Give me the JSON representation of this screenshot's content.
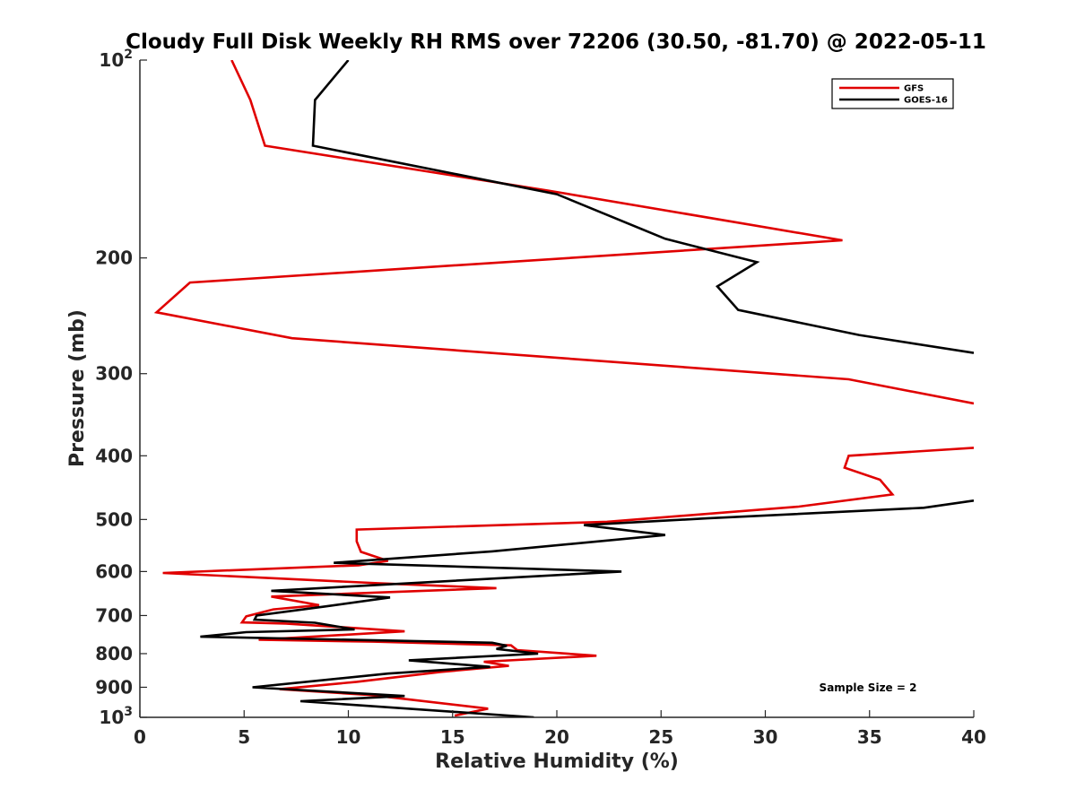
{
  "chart_data": {
    "type": "line",
    "title": "Cloudy Full Disk Weekly RH RMS over 72206 (30.50, -81.70) @ 2022-05-11",
    "xlabel": "Relative Humidity (%)",
    "ylabel": "Pressure (mb)",
    "xlim": [
      0,
      40
    ],
    "ylim": [
      100,
      1000
    ],
    "yscale": "log",
    "y_reversed": true,
    "grid": false,
    "legend_position": "top-right",
    "x_ticks": [
      0,
      5,
      10,
      15,
      20,
      25,
      30,
      35,
      40
    ],
    "y_ticks": [
      {
        "value": 100,
        "base": "10",
        "exp": "2"
      },
      {
        "value": 200,
        "label": "200"
      },
      {
        "value": 300,
        "label": "300"
      },
      {
        "value": 400,
        "label": "400"
      },
      {
        "value": 500,
        "label": "500"
      },
      {
        "value": 600,
        "label": "600"
      },
      {
        "value": 700,
        "label": "700"
      },
      {
        "value": 800,
        "label": "800"
      },
      {
        "value": 900,
        "label": "900"
      },
      {
        "value": 1000,
        "base": "10",
        "exp": "3"
      }
    ],
    "annotation": "Sample Size = 2",
    "series": [
      {
        "name": "GFS",
        "color": "#e00000",
        "points": [
          [
            4.4,
            100
          ],
          [
            5.3,
            115
          ],
          [
            6.0,
            135
          ],
          [
            19.6,
            158
          ],
          [
            33.7,
            188
          ],
          [
            2.4,
            218
          ],
          [
            0.8,
            242
          ],
          [
            7.3,
            265
          ],
          [
            34,
            306
          ],
          [
            40,
            333
          ],
          [
            null,
            null
          ],
          [
            40,
            389
          ],
          [
            34.0,
            400
          ],
          [
            33.8,
            417
          ],
          [
            35.5,
            435
          ],
          [
            36.1,
            458
          ],
          [
            31.6,
            478
          ],
          [
            22.4,
            504
          ],
          [
            10.4,
            518
          ],
          [
            10.4,
            540
          ],
          [
            10.6,
            560
          ],
          [
            11.9,
            578
          ],
          [
            10.5,
            587
          ],
          [
            1.1,
            603
          ],
          [
            11.4,
            625
          ],
          [
            17.1,
            636
          ],
          [
            6.3,
            655
          ],
          [
            8.6,
            675
          ],
          [
            6.4,
            685
          ],
          [
            5.1,
            702
          ],
          [
            4.9,
            717
          ],
          [
            7.0,
            720
          ],
          [
            12.7,
            740
          ],
          [
            5.7,
            762
          ],
          [
            11.2,
            767
          ],
          [
            17.8,
            777
          ],
          [
            18.1,
            790
          ],
          [
            21.9,
            806
          ],
          [
            16.5,
            823
          ],
          [
            17.7,
            835
          ],
          [
            14.4,
            853
          ],
          [
            10.4,
            883
          ],
          [
            6.7,
            906
          ],
          [
            11.1,
            925
          ],
          [
            16.7,
            970
          ],
          [
            15.1,
            994
          ]
        ]
      },
      {
        "name": "GOES-16",
        "color": "#000000",
        "points": [
          [
            10.0,
            100
          ],
          [
            8.4,
            115
          ],
          [
            8.3,
            135
          ],
          [
            20.0,
            160
          ],
          [
            25.2,
            187
          ],
          [
            29.6,
            203
          ],
          [
            27.7,
            221
          ],
          [
            28.7,
            240
          ],
          [
            34.5,
            262
          ],
          [
            40,
            279
          ],
          [
            null,
            null
          ],
          [
            40,
            468
          ],
          [
            37.6,
            480
          ],
          [
            27.2,
            498
          ],
          [
            21.3,
            510
          ],
          [
            25.2,
            528
          ],
          [
            16.9,
            559
          ],
          [
            9.3,
            582
          ],
          [
            23.1,
            600
          ],
          [
            6.3,
            642
          ],
          [
            12.0,
            657
          ],
          [
            8.9,
            678
          ],
          [
            5.6,
            700
          ],
          [
            5.5,
            710
          ],
          [
            8.4,
            718
          ],
          [
            10.3,
            735
          ],
          [
            5.1,
            742
          ],
          [
            2.9,
            754
          ],
          [
            16.9,
            770
          ],
          [
            17.6,
            778
          ],
          [
            17.1,
            787
          ],
          [
            19.1,
            800
          ],
          [
            12.9,
            819
          ],
          [
            16.8,
            838
          ],
          [
            11.9,
            858
          ],
          [
            5.4,
            900
          ],
          [
            12.7,
            928
          ],
          [
            7.7,
            945
          ],
          [
            18.9,
            1000
          ]
        ]
      }
    ]
  }
}
